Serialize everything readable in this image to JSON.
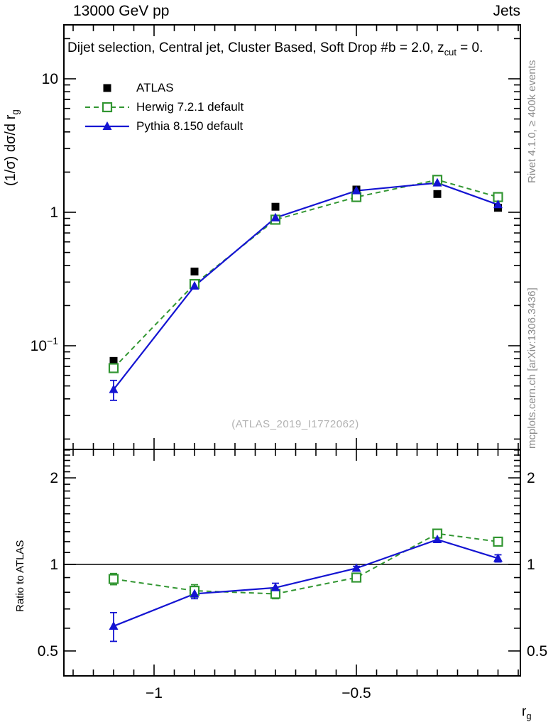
{
  "header": {
    "left": "13000 GeV pp",
    "right": "Jets"
  },
  "title": {
    "main": "Dijet selection, Central jet, Cluster Based, Soft Drop #b = 2.0, z",
    "sub": "cut",
    "tail": " = 0."
  },
  "legend": [
    {
      "label": "ATLAS",
      "series_index": 0
    },
    {
      "label": "Herwig 7.2.1 default",
      "series_index": 1
    },
    {
      "label": "Pythia 8.150 default",
      "series_index": 2
    }
  ],
  "watermark": "(ATLAS_2019_I1772062)",
  "side_notes": {
    "top": "Rivet 4.1.0, ≥ 400k events",
    "bottom": "mcplots.cern.ch [arXiv:1306.3436]"
  },
  "axes": {
    "x_label": {
      "main": "r",
      "sub": "g"
    },
    "y_label_top": {
      "pre": "(1/σ) dσ/d r",
      "sub": "g"
    },
    "y_label_ratio": "Ratio to ATLAS"
  },
  "colors": {
    "atlas": "#000000",
    "herwig": "#329632",
    "pythia": "#1414d2",
    "note_gray": "#8c8c8c",
    "watermark_gray": "#b2b2b2"
  },
  "chart_data": {
    "type": "line",
    "title": "Dijet selection, Central jet, Cluster Based, Soft Drop #b = 2.0, z_cut = 0.",
    "xlabel": "r_g",
    "x": [
      -1.1,
      -0.9,
      -0.7,
      -0.5,
      -0.3,
      -0.15
    ],
    "xlim": [
      -1.223,
      -0.095
    ],
    "x_ticks_major": [
      -1,
      -0.5
    ],
    "x_tick_labels": [
      "−1",
      "−0.5"
    ],
    "x_minor_step": 0.05,
    "grid": false,
    "legend_position": "top-left",
    "top_panel": {
      "ylabel": "(1/σ) dσ/d r_g",
      "yscale": "log",
      "ylim": [
        0.017,
        25
      ],
      "y_ticks": [
        {
          "v": 10,
          "t": "10"
        },
        {
          "v": 1,
          "t": "1"
        },
        {
          "v": 0.1,
          "t": "10",
          "sup": "−1"
        }
      ],
      "series": [
        {
          "name": "ATLAS",
          "color": "#000000",
          "marker": "filled-square",
          "line": "none",
          "values": [
            0.077,
            0.36,
            1.1,
            1.48,
            1.37,
            1.08
          ],
          "yerr": [
            0,
            0,
            0,
            0,
            0,
            0
          ]
        },
        {
          "name": "Herwig 7.2.1 default",
          "color": "#329632",
          "marker": "open-square",
          "line": "dashed",
          "values": [
            0.068,
            0.29,
            0.88,
            1.3,
            1.75,
            1.3
          ],
          "yerr": [
            0,
            0,
            0,
            0,
            0,
            0
          ]
        },
        {
          "name": "Pythia 8.150 default",
          "color": "#1414d2",
          "marker": "filled-triangle",
          "line": "solid",
          "values": [
            0.047,
            0.28,
            0.91,
            1.45,
            1.66,
            1.14
          ],
          "yerr": [
            0.008,
            0,
            0,
            0,
            0,
            0
          ]
        }
      ]
    },
    "ratio_panel": {
      "ylabel": "Ratio to ATLAS",
      "yscale": "log",
      "ylim": [
        0.41,
        2.5
      ],
      "ref_line": 1,
      "y_ticks": [
        {
          "v": 2,
          "t": "2"
        },
        {
          "v": 1,
          "t": "1"
        },
        {
          "v": 0.5,
          "t": "0.5"
        }
      ],
      "series": [
        {
          "name": "Herwig 7.2.1 default",
          "color": "#329632",
          "marker": "open-square",
          "line": "dashed",
          "values": [
            0.89,
            0.81,
            0.79,
            0.9,
            1.28,
            1.2
          ],
          "yerr": [
            0.04,
            0.04,
            0.03,
            0.02,
            0.02,
            0.03
          ]
        },
        {
          "name": "Pythia 8.150 default",
          "color": "#1414d2",
          "marker": "filled-triangle",
          "line": "solid",
          "values": [
            0.61,
            0.79,
            0.83,
            0.97,
            1.22,
            1.05
          ],
          "yerr": [
            0.07,
            0.03,
            0.03,
            0.015,
            0.02,
            0.03
          ]
        }
      ]
    }
  }
}
